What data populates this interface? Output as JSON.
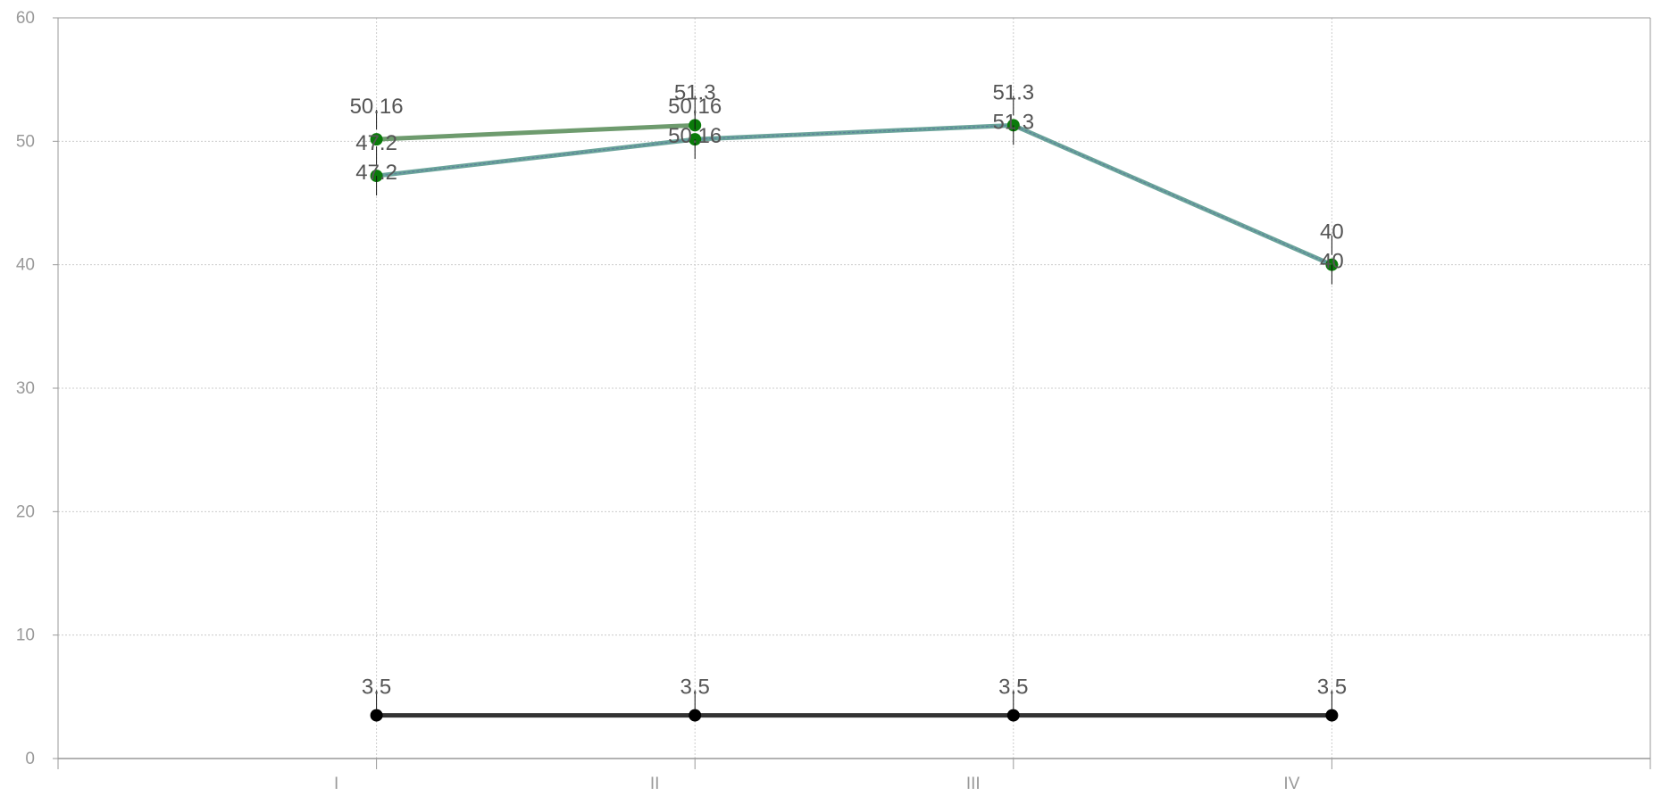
{
  "chart_data": {
    "type": "line",
    "categories": [
      "I",
      "II",
      "III",
      "IV"
    ],
    "ylim": [
      0,
      60
    ],
    "yticks": [
      0,
      10,
      20,
      30,
      40,
      50,
      60
    ],
    "grid": true,
    "legend": "none",
    "series": [
      {
        "values": [
          50.16,
          51.3,
          null,
          null
        ],
        "color": "#6e9b6e",
        "marker_color": "#0a7a0a",
        "style": "solid"
      },
      {
        "values": [
          47.2,
          50.16,
          51.3,
          40
        ],
        "color": "#6aa39a",
        "marker_color": "#0a7a0a",
        "style": "dashed"
      },
      {
        "values": [
          3.5,
          3.5,
          3.5,
          3.5
        ],
        "color": "#333333",
        "marker_color": "#000000",
        "style": "solid"
      }
    ],
    "data_labels": [
      {
        "category": "I",
        "value": 50.16,
        "text": "50.16"
      },
      {
        "category": "I",
        "value": 47.2,
        "text": "47.2"
      },
      {
        "category": "I",
        "value": 47.2,
        "text": "47.2"
      },
      {
        "category": "II",
        "value": 51.3,
        "text": "51.3"
      },
      {
        "category": "II",
        "value": 50.16,
        "text": "50.16"
      },
      {
        "category": "II",
        "value": 50.16,
        "text": "50.16"
      },
      {
        "category": "III",
        "value": 51.3,
        "text": "51.3"
      },
      {
        "category": "III",
        "value": 51.3,
        "text": "51.3"
      },
      {
        "category": "IV",
        "value": 40,
        "text": "40"
      },
      {
        "category": "IV",
        "value": 40,
        "text": "40"
      },
      {
        "category": "I",
        "value": 3.5,
        "text": "3.5"
      },
      {
        "category": "II",
        "value": 3.5,
        "text": "3.5"
      },
      {
        "category": "III",
        "value": 3.5,
        "text": "3.5"
      },
      {
        "category": "IV",
        "value": 3.5,
        "text": "3.5"
      }
    ]
  }
}
